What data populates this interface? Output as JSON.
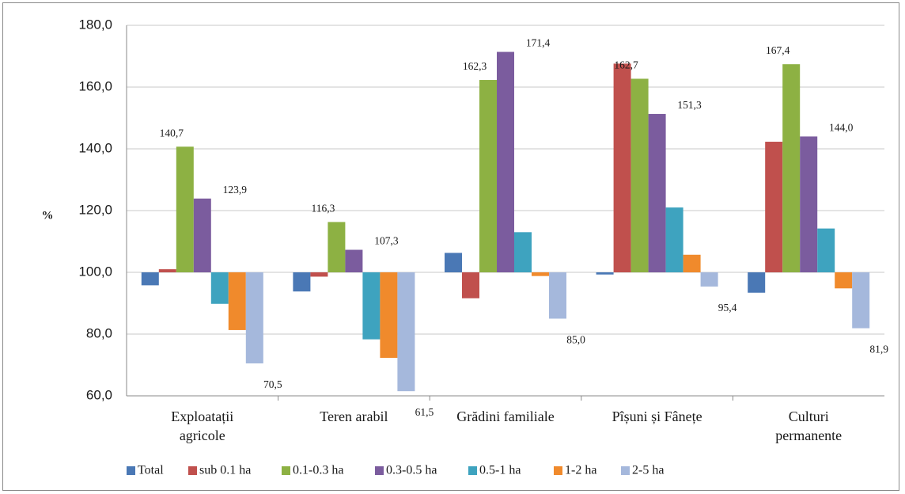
{
  "chart_data": {
    "type": "bar",
    "title": "",
    "xlabel": "",
    "ylabel": "%",
    "ylim": [
      60,
      180
    ],
    "baseline": 100,
    "yticks": [
      "60,0",
      "80,0",
      "100,0",
      "120,0",
      "140,0",
      "160,0",
      "180,0"
    ],
    "ytick_values": [
      60,
      80,
      100,
      120,
      140,
      160,
      180
    ],
    "grid": true,
    "legend_position": "bottom",
    "categories": [
      [
        "Exploatații",
        "agricole"
      ],
      [
        "Teren arabil"
      ],
      [
        "Grădini familiale"
      ],
      [
        "Pîșuni și Fânețe"
      ],
      [
        "Culturi",
        "permanente"
      ]
    ],
    "series": [
      {
        "name": "Total",
        "color": "#4a78b5",
        "values": [
          95.8,
          93.8,
          106.3,
          99.3,
          93.4
        ]
      },
      {
        "name": "sub 0.1 ha",
        "color": "#c0504d",
        "values": [
          101.0,
          98.6,
          91.6,
          167.6,
          142.3
        ]
      },
      {
        "name": "0.1-0.3 ha",
        "color": "#8db143",
        "values": [
          140.7,
          116.3,
          162.3,
          162.7,
          167.4
        ]
      },
      {
        "name": "0.3-0.5 ha",
        "color": "#7b5c9e",
        "values": [
          123.9,
          107.3,
          171.4,
          151.3,
          144.0
        ]
      },
      {
        "name": "0.5-1 ha",
        "color": "#3ea3bf",
        "values": [
          89.8,
          78.3,
          113.0,
          121.0,
          114.2
        ]
      },
      {
        "name": "1-2  ha",
        "color": "#f08a2c",
        "values": [
          81.3,
          72.3,
          98.8,
          105.7,
          94.8
        ]
      },
      {
        "name": "2-5  ha",
        "color": "#a5b8dc",
        "values": [
          70.5,
          61.5,
          85.0,
          95.4,
          81.9
        ]
      }
    ],
    "data_labels": [
      {
        "category": 0,
        "series": 2,
        "text": "140,7"
      },
      {
        "category": 0,
        "series": 3,
        "text": "123,9"
      },
      {
        "category": 0,
        "series": 6,
        "text": "70,5"
      },
      {
        "category": 1,
        "series": 2,
        "text": "116,3"
      },
      {
        "category": 1,
        "series": 3,
        "text": "107,3"
      },
      {
        "category": 1,
        "series": 6,
        "text": "61,5"
      },
      {
        "category": 2,
        "series": 2,
        "text": "162,3"
      },
      {
        "category": 2,
        "series": 3,
        "text": "171,4"
      },
      {
        "category": 2,
        "series": 6,
        "text": "85,0"
      },
      {
        "category": 3,
        "series": 2,
        "text": "162,7"
      },
      {
        "category": 3,
        "series": 3,
        "text": "151,3"
      },
      {
        "category": 3,
        "series": 6,
        "text": "95,4"
      },
      {
        "category": 4,
        "series": 2,
        "text": "167,4"
      },
      {
        "category": 4,
        "series": 3,
        "text": "144,0"
      },
      {
        "category": 4,
        "series": 6,
        "text": "81,9"
      }
    ]
  }
}
